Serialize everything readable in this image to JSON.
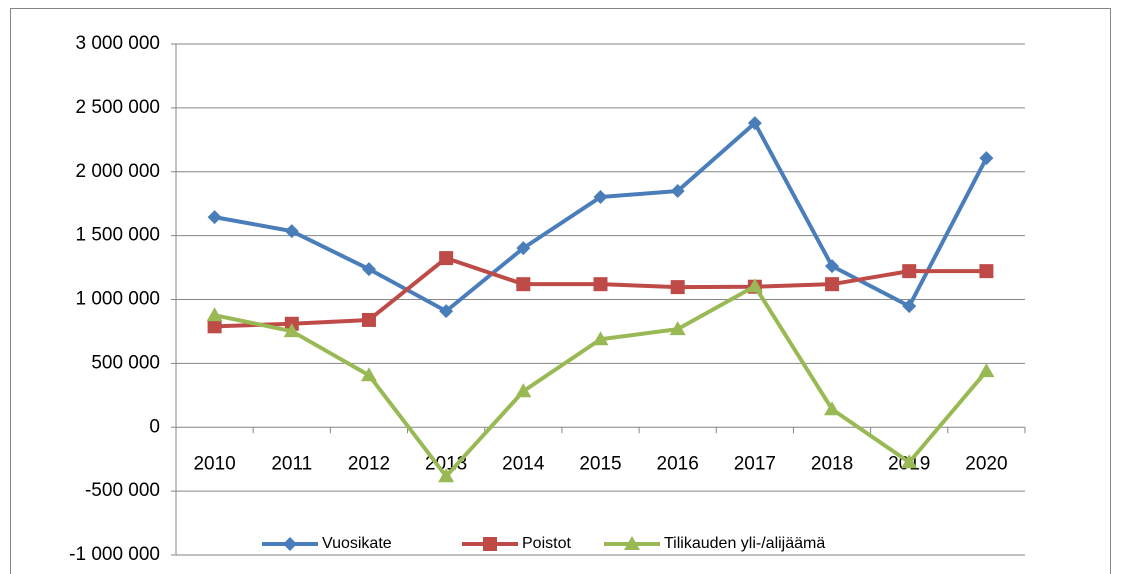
{
  "chart_data": {
    "type": "line",
    "categories": [
      "2010",
      "2011",
      "2012",
      "2013",
      "2014",
      "2015",
      "2016",
      "2017",
      "2018",
      "2019",
      "2020"
    ],
    "series": [
      {
        "name": "Vuosikate",
        "color": "#4a7ebb",
        "marker": "diamond",
        "values": [
          1645000,
          1535000,
          1238000,
          909000,
          1402000,
          1802000,
          1849000,
          2381000,
          1261000,
          948000,
          2107000
        ]
      },
      {
        "name": "Poistot",
        "color": "#be4b48",
        "marker": "square",
        "values": [
          790000,
          810000,
          840000,
          1324000,
          1120000,
          1120000,
          1097000,
          1100000,
          1120000,
          1222000,
          1222000
        ]
      },
      {
        "name": "Tilikauden yli-/alijäämä",
        "color": "#98b954",
        "marker": "triangle",
        "values": [
          877000,
          752000,
          407000,
          -384000,
          282000,
          689000,
          768000,
          1104000,
          141000,
          -274000,
          439000
        ]
      }
    ],
    "ylim": [
      -1000000,
      3000000
    ],
    "yticks": [
      {
        "value": -1000000,
        "label": "-1 000 000"
      },
      {
        "value": -500000,
        "label": "-500 000"
      },
      0,
      {
        "value": 500000,
        "label": "500 000"
      },
      {
        "value": 1000000,
        "label": "1 000 000"
      },
      {
        "value": 1500000,
        "label": "1 500 000"
      },
      {
        "value": 2000000,
        "label": "2 000 000"
      },
      {
        "value": 2500000,
        "label": "2 500 000"
      },
      {
        "value": 3000000,
        "label": "3 000 000"
      }
    ],
    "grid": true,
    "legend": "bottom"
  }
}
